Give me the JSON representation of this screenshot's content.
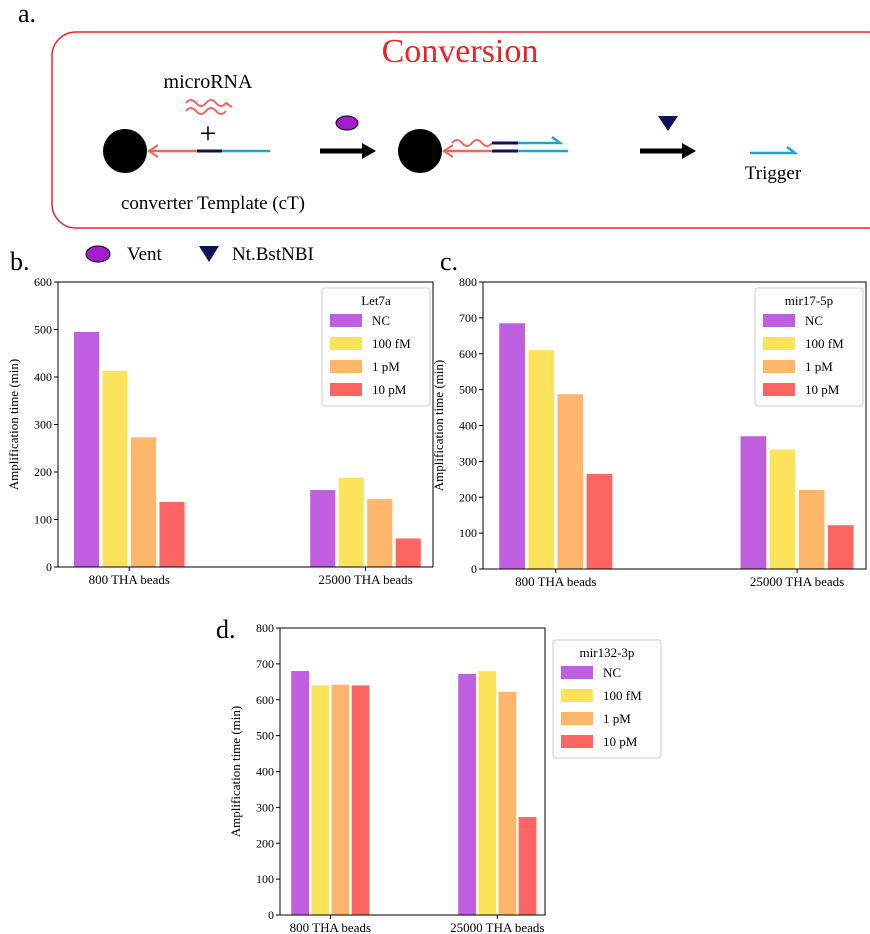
{
  "panel_labels": [
    "a.",
    "b.",
    "c.",
    "d."
  ],
  "diagram": {
    "title": "Conversion",
    "microrna": "microRNA",
    "plus": "+",
    "template": "converter Template (cT)",
    "trigger": "Trigger",
    "enzymes": [
      "Vent",
      "Nt.BstNBI"
    ]
  },
  "chart_data": [
    {
      "type": "bar",
      "ylabel": "Amplification time (min)",
      "categories": [
        "800 THA beads",
        "25000 THA beads"
      ],
      "legend_title": "Let7a",
      "legend_loc": "upper right",
      "ylim": [
        0,
        600
      ],
      "yticks": [
        0,
        100,
        200,
        300,
        400,
        500,
        600
      ],
      "series": [
        {
          "name": "NC",
          "color": "#bf5fdf",
          "values": [
            495,
            162
          ]
        },
        {
          "name": "100 fM",
          "color": "#fce35c",
          "values": [
            413,
            188
          ]
        },
        {
          "name": "1 pM",
          "color": "#feb66a",
          "values": [
            273,
            143
          ]
        },
        {
          "name": "10 pM",
          "color": "#fd6563",
          "values": [
            137,
            60
          ]
        }
      ]
    },
    {
      "type": "bar",
      "ylabel": "Amplification time (min)",
      "categories": [
        "800 THA beads",
        "25000 THA beads"
      ],
      "legend_title": "mir17-5p",
      "legend_loc": "upper right",
      "ylim": [
        0,
        800
      ],
      "yticks": [
        0,
        100,
        200,
        300,
        400,
        500,
        600,
        700,
        800
      ],
      "series": [
        {
          "name": "NC",
          "color": "#bf5fdf",
          "values": [
            685,
            370
          ]
        },
        {
          "name": "100 fM",
          "color": "#fce35c",
          "values": [
            610,
            333
          ]
        },
        {
          "name": "1 pM",
          "color": "#feb66a",
          "values": [
            487,
            220
          ]
        },
        {
          "name": "10 pM",
          "color": "#fd6563",
          "values": [
            265,
            122
          ]
        }
      ]
    },
    {
      "type": "bar",
      "ylabel": "Amplification time (min)",
      "categories": [
        "800 THA beads",
        "25000 THA beads"
      ],
      "legend_title": "mir132-3p",
      "legend_loc": "outside right",
      "ylim": [
        0,
        800
      ],
      "yticks": [
        0,
        100,
        200,
        300,
        400,
        500,
        600,
        700,
        800
      ],
      "series": [
        {
          "name": "NC",
          "color": "#bf5fdf",
          "values": [
            680,
            672
          ]
        },
        {
          "name": "100 fM",
          "color": "#fce35c",
          "values": [
            640,
            680
          ]
        },
        {
          "name": "1 pM",
          "color": "#feb66a",
          "values": [
            642,
            622
          ]
        },
        {
          "name": "10 pM",
          "color": "#fd6563",
          "values": [
            640,
            273
          ]
        }
      ]
    }
  ]
}
